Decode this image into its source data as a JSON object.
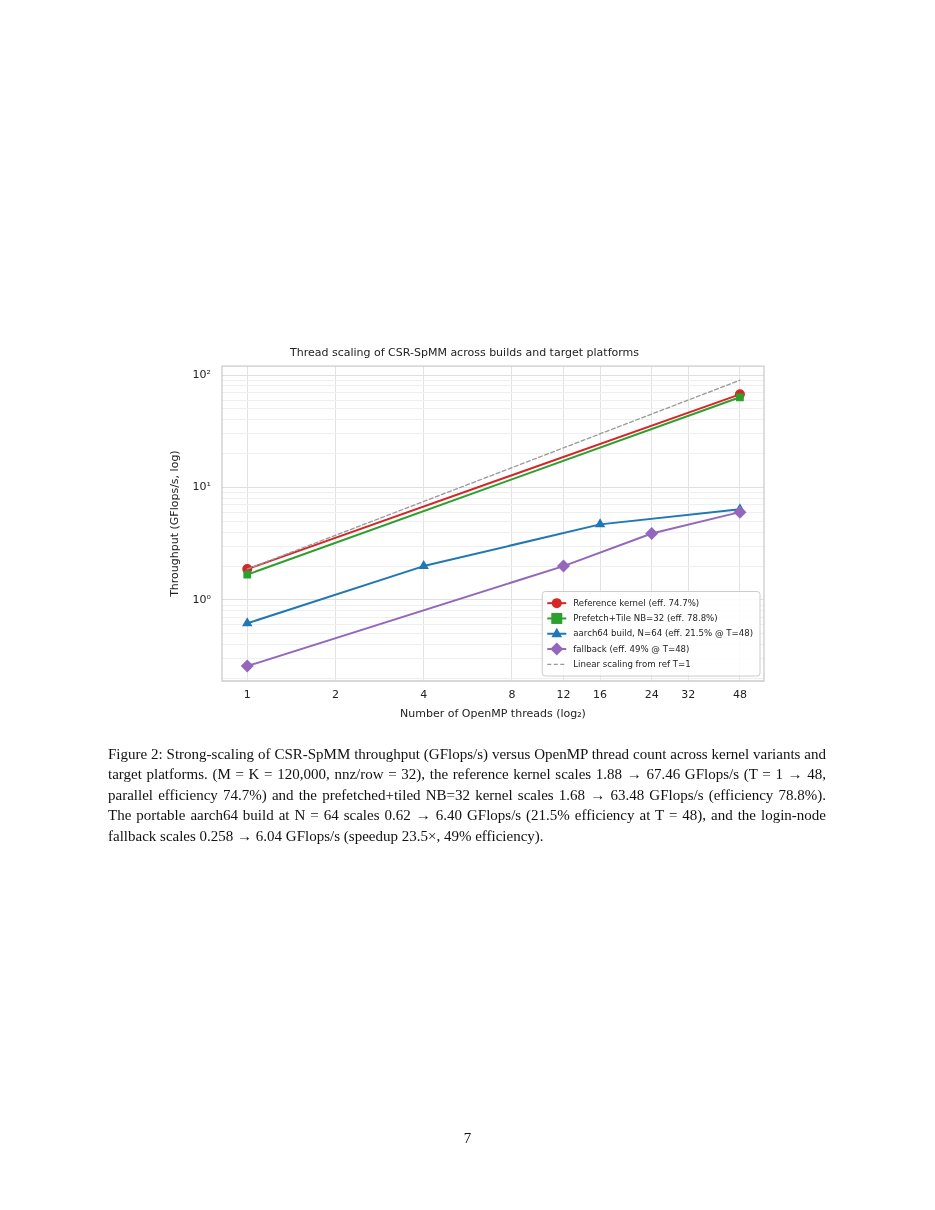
{
  "chart_data": {
    "type": "line",
    "title": "Thread scaling of CSR-SpMM across builds and target platforms",
    "xlabel": "Number of OpenMP threads (log₂)",
    "ylabel": "Throughput (GFlops/s, log)",
    "log": "xy",
    "grid": true,
    "legend": "bottom right",
    "xlim": [
      0.82,
      58
    ],
    "xticks": [
      1,
      2,
      4,
      8,
      12,
      16,
      24,
      32,
      48
    ],
    "ylim": [
      0.19,
      120
    ],
    "yticks": [
      {
        "value": 0.2,
        "label": null
      },
      {
        "value": 0.3,
        "label": null
      },
      {
        "value": 0.4,
        "label": null
      },
      {
        "value": 0.5,
        "label": null
      },
      {
        "value": 0.6,
        "label": null
      },
      {
        "value": 0.7,
        "label": null
      },
      {
        "value": 0.8,
        "label": null
      },
      {
        "value": 0.9,
        "label": null
      },
      {
        "value": 1,
        "label": "10⁰"
      },
      {
        "value": 2,
        "label": null
      },
      {
        "value": 3,
        "label": null
      },
      {
        "value": 4,
        "label": null
      },
      {
        "value": 5,
        "label": null
      },
      {
        "value": 6,
        "label": null
      },
      {
        "value": 7,
        "label": null
      },
      {
        "value": 8,
        "label": null
      },
      {
        "value": 9,
        "label": null
      },
      {
        "value": 10,
        "label": "10¹"
      },
      {
        "value": 20,
        "label": null
      },
      {
        "value": 30,
        "label": null
      },
      {
        "value": 40,
        "label": null
      },
      {
        "value": 50,
        "label": null
      },
      {
        "value": 60,
        "label": null
      },
      {
        "value": 70,
        "label": null
      },
      {
        "value": 80,
        "label": null
      },
      {
        "value": 90,
        "label": null
      },
      {
        "value": 100,
        "label": "10²"
      }
    ],
    "series": [
      {
        "name": "Reference kernel (eff. 74.7%)",
        "color": "#d62728",
        "marker": "circle",
        "x": [
          1,
          48
        ],
        "values": [
          1.88,
          67.46
        ]
      },
      {
        "name": "Prefetch+Tile NB=32 (eff. 78.8%)",
        "color": "#2ca02c",
        "marker": "square",
        "x": [
          1,
          48
        ],
        "values": [
          1.68,
          63.48
        ]
      },
      {
        "name": "aarch64 build, N=64 (eff. 21.5% @ T=48)",
        "color": "#1f77b4",
        "marker": "triangle",
        "x": [
          1,
          4,
          16,
          48
        ],
        "values": [
          0.62,
          2.0,
          4.7,
          6.4
        ]
      },
      {
        "name": "fallback (eff. 49% @ T=48)",
        "color": "#9467bd",
        "marker": "diamond",
        "x": [
          1,
          12,
          24,
          48
        ],
        "values": [
          0.258,
          2.0,
          3.9,
          6.04
        ]
      },
      {
        "name": "Linear scaling from ref T=1",
        "color": "#999999",
        "marker": "none",
        "line_style": "dashed",
        "x": [
          1,
          48
        ],
        "values": [
          1.88,
          90
        ]
      }
    ],
    "annotations": [
      "Figure 2: Strong-scaling of CSR-SpMM throughput (GFlops/s) versus OpenMP thread count across kernel variants and target platforms. (M = K = 120,000, nnz/row = 32), the reference kernel scales 1.88 → 67.46 GFlops/s (T = 1 → 48, parallel efficiency 74.7%) and the prefetched+tiled NB=32 kernel scales 1.68 → 63.48 GFlops/s (efficiency 78.8%). The portable aarch64 build at N = 64 scales 0.62 → 6.40 GFlops/s (21.5% efficiency at T = 48), and the login-node fallback scales 0.258 → 6.04 GFlops/s (speedup 23.5×, 49% efficiency).",
      "7"
    ]
  }
}
